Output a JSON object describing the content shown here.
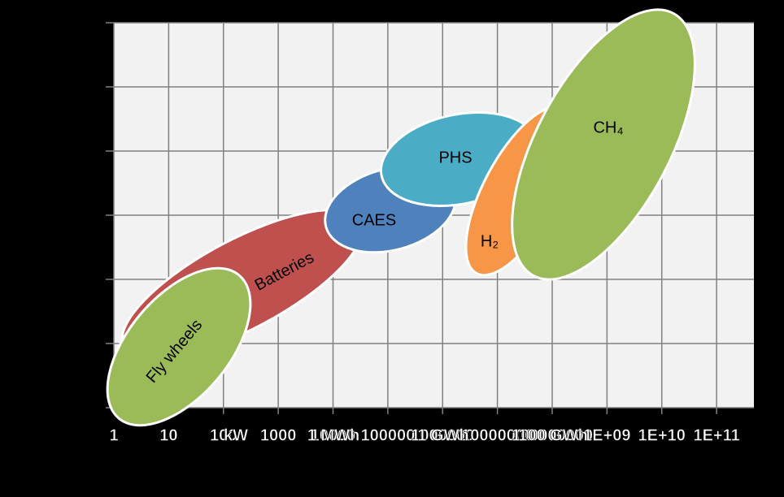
{
  "chart_data": {
    "type": "regions",
    "log_x": true,
    "xlim": [
      1,
      480000000000
    ],
    "xticks": [
      1,
      10,
      100,
      1000,
      10000,
      100000,
      1000000,
      10000000,
      100000000,
      {
        "value": 1000000000,
        "label": "1E+09"
      },
      {
        "value": 10000000000,
        "label": "1E+10"
      },
      {
        "value": 100000000000,
        "label": "1E+11"
      }
    ],
    "unit_labels": [
      "kW",
      "1 MWh",
      "1 GWh",
      "100 GWh"
    ],
    "grid": true,
    "regions": [
      {
        "name": "Batteries",
        "color": "#c0504d"
      },
      {
        "name": "Fly wheels",
        "color": "#9bbb59"
      },
      {
        "name": "CAES",
        "color": "#4f81bd"
      },
      {
        "name": "PHS",
        "color": "#4bacc6"
      },
      {
        "name": "H₂",
        "color": "#f79646"
      },
      {
        "name": "CH₄",
        "color": "#9bbb59"
      }
    ]
  }
}
